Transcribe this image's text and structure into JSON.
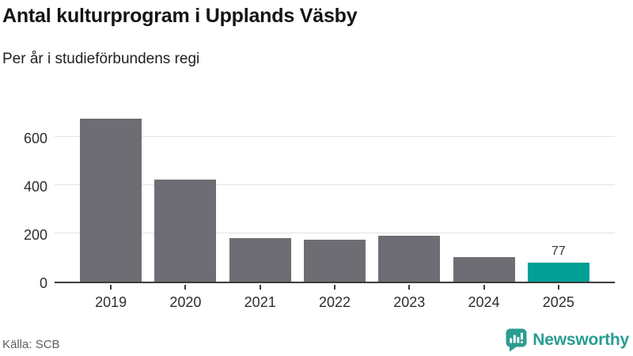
{
  "header": {
    "title": "Antal kulturprogram i Upplands Väsby",
    "subtitle": "Per år i studieförbundens regi"
  },
  "chart_data": {
    "type": "bar",
    "title": "Antal kulturprogram i Upplands Väsby",
    "subtitle": "Per år i studieförbundens regi",
    "categories": [
      "2019",
      "2020",
      "2021",
      "2022",
      "2023",
      "2024",
      "2025"
    ],
    "values": [
      675,
      422,
      181,
      172,
      191,
      103,
      77
    ],
    "value_labels": [
      "",
      "",
      "",
      "",
      "",
      "",
      "77"
    ],
    "xlabel": "",
    "ylabel": "",
    "yticks": [
      0,
      200,
      400,
      600
    ],
    "ylim": [
      0,
      700
    ],
    "grid": "horizontal",
    "legend": "none",
    "default_bar_color": "#6e6d73",
    "highlight_bar_color": "#00a097",
    "bar_colors": [
      "#6e6d73",
      "#6e6d73",
      "#6e6d73",
      "#6e6d73",
      "#6e6d73",
      "#6e6d73",
      "#00a097"
    ]
  },
  "footer": {
    "source": "Källa: SCB",
    "brand": "Newsworthy",
    "brand_color": "#2a9c92",
    "brand_icon": "newsworthy-speech-bubble-barchart-icon"
  }
}
